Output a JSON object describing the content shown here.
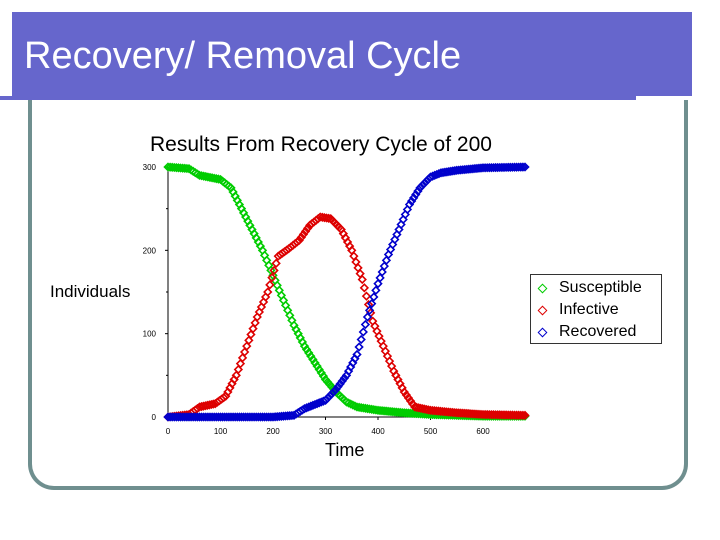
{
  "slide": {
    "title": "Recovery/ Removal Cycle"
  },
  "colors": {
    "title_bar": "#6666cc",
    "frame": "#6f8f8f",
    "susceptible": "#00cc00",
    "infective": "#dd0000",
    "recovered": "#0000cc"
  },
  "chart_data": {
    "type": "scatter",
    "title": "Results From Recovery Cycle of 200",
    "xlabel": "Time",
    "ylabel": "Individuals",
    "xlim": [
      0,
      680
    ],
    "ylim": [
      0,
      300
    ],
    "x_ticks": [
      "0",
      "100",
      "200",
      "300",
      "400",
      "500",
      "600"
    ],
    "y_ticks": [
      "0",
      "100",
      "200",
      "300"
    ],
    "legend_position": "right",
    "series": [
      {
        "name": "Susceptible",
        "color": "#00cc00",
        "points": [
          [
            0,
            300
          ],
          [
            40,
            298
          ],
          [
            60,
            290
          ],
          [
            100,
            285
          ],
          [
            120,
            275
          ],
          [
            140,
            250
          ],
          [
            160,
            225
          ],
          [
            180,
            200
          ],
          [
            200,
            170
          ],
          [
            220,
            140
          ],
          [
            240,
            110
          ],
          [
            260,
            85
          ],
          [
            280,
            65
          ],
          [
            300,
            45
          ],
          [
            320,
            30
          ],
          [
            340,
            18
          ],
          [
            360,
            12
          ],
          [
            400,
            8
          ],
          [
            450,
            5
          ],
          [
            500,
            3
          ],
          [
            550,
            2
          ],
          [
            600,
            1
          ],
          [
            680,
            1
          ]
        ]
      },
      {
        "name": "Infective",
        "color": "#dd0000",
        "points": [
          [
            0,
            0
          ],
          [
            40,
            3
          ],
          [
            60,
            12
          ],
          [
            90,
            16
          ],
          [
            110,
            25
          ],
          [
            130,
            50
          ],
          [
            150,
            85
          ],
          [
            170,
            120
          ],
          [
            190,
            150
          ],
          [
            210,
            193
          ],
          [
            230,
            202
          ],
          [
            250,
            212
          ],
          [
            270,
            230
          ],
          [
            290,
            240
          ],
          [
            310,
            238
          ],
          [
            330,
            225
          ],
          [
            350,
            200
          ],
          [
            370,
            165
          ],
          [
            390,
            115
          ],
          [
            410,
            85
          ],
          [
            430,
            55
          ],
          [
            450,
            30
          ],
          [
            470,
            12
          ],
          [
            500,
            8
          ],
          [
            550,
            5
          ],
          [
            600,
            3
          ],
          [
            680,
            2
          ]
        ]
      },
      {
        "name": "Recovered",
        "color": "#0000cc",
        "points": [
          [
            0,
            0
          ],
          [
            100,
            0
          ],
          [
            200,
            0
          ],
          [
            240,
            2
          ],
          [
            260,
            10
          ],
          [
            280,
            15
          ],
          [
            300,
            20
          ],
          [
            320,
            33
          ],
          [
            340,
            50
          ],
          [
            360,
            75
          ],
          [
            380,
            120
          ],
          [
            400,
            160
          ],
          [
            420,
            195
          ],
          [
            440,
            225
          ],
          [
            460,
            255
          ],
          [
            480,
            275
          ],
          [
            500,
            288
          ],
          [
            520,
            293
          ],
          [
            550,
            296
          ],
          [
            600,
            299
          ],
          [
            680,
            300
          ]
        ]
      }
    ]
  }
}
